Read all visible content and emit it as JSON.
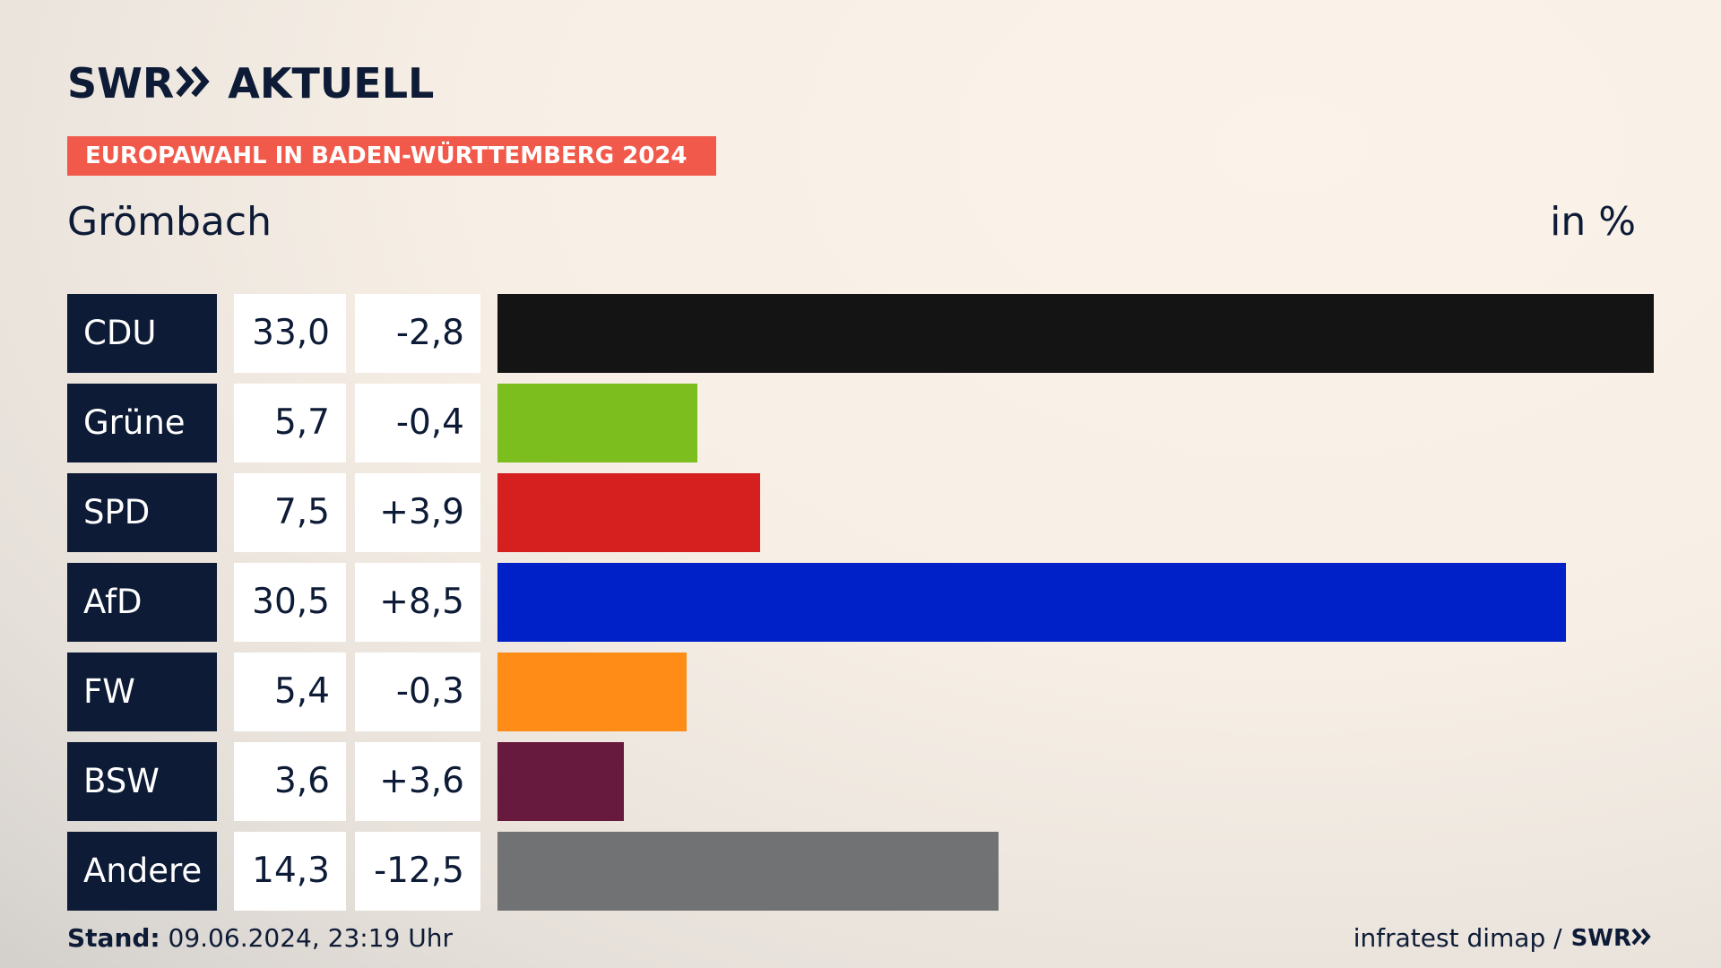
{
  "header": {
    "logo_text": "SWR",
    "logo_suffix": "AKTUELL",
    "banner": "EUROPAWAHL IN BADEN-WÜRTTEMBERG 2024",
    "place": "Grömbach",
    "unit": "in %"
  },
  "footer": {
    "stand_label": "Stand:",
    "stand_value": "09.06.2024, 23:19 Uhr",
    "source": "infratest dimap /",
    "source_logo": "SWR"
  },
  "chart_data": {
    "type": "bar",
    "orientation": "horizontal",
    "categories": [
      "CDU",
      "Grüne",
      "SPD",
      "AfD",
      "FW",
      "BSW",
      "Andere"
    ],
    "values": [
      33.0,
      5.7,
      7.5,
      30.5,
      5.4,
      3.6,
      14.3
    ],
    "value_labels": [
      "33,0",
      "5,7",
      "7,5",
      "30,5",
      "5,4",
      "3,6",
      "14,3"
    ],
    "change_labels": [
      "-2,8",
      "-0,4",
      "+3,9",
      "+8,5",
      "-0,3",
      "+3,6",
      "-12,5"
    ],
    "colors": [
      "#141414",
      "#7cbe1e",
      "#d61f1f",
      "#0020c8",
      "#ff8c17",
      "#681a3e",
      "#717274"
    ],
    "xlim": [
      0,
      33.0
    ]
  }
}
